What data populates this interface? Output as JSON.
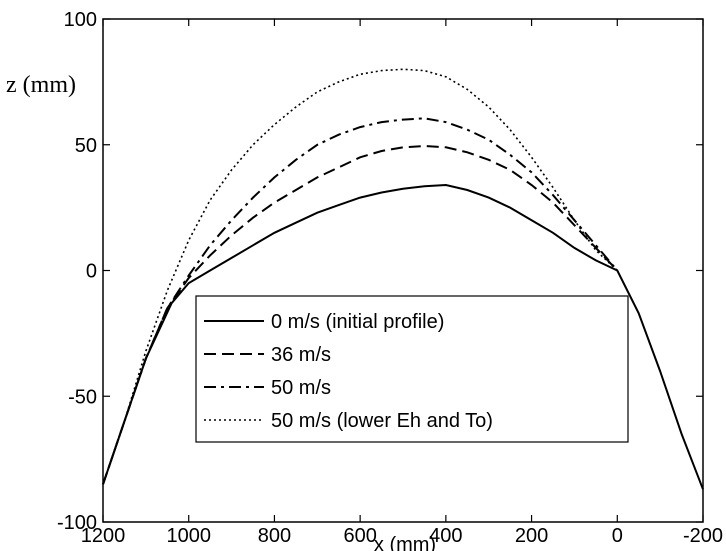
{
  "chart_data": {
    "type": "line",
    "xlabel": "x (mm)",
    "ylabel": "z (mm)",
    "xlim": [
      1200,
      -200
    ],
    "ylim": [
      -100,
      100
    ],
    "x_ticks": [
      1200,
      1000,
      800,
      600,
      400,
      200,
      0,
      -200
    ],
    "y_ticks": [
      100,
      50,
      0,
      -50,
      -100
    ],
    "x_tick_labels": [
      "1200",
      "1000",
      "800",
      "600",
      "400",
      "200",
      "0",
      "-200"
    ],
    "y_tick_labels": [
      "100",
      "50",
      "0",
      "-50",
      "-100"
    ],
    "grid": false,
    "legend_position": "lower-center",
    "series": [
      {
        "name": "0  m/s (initial profile)",
        "style": "solid",
        "x": [
          1200,
          1150,
          1100,
          1040,
          1000,
          950,
          900,
          850,
          800,
          750,
          700,
          650,
          600,
          550,
          500,
          450,
          400,
          350,
          300,
          250,
          200,
          150,
          100,
          50,
          0,
          -50,
          -100,
          -150,
          -200
        ],
        "y": [
          -85,
          -60,
          -35,
          -13,
          -5,
          0,
          5,
          10,
          15,
          19,
          23,
          26,
          29,
          31,
          32.5,
          33.5,
          34,
          32,
          29,
          25,
          20,
          15,
          9,
          4,
          0,
          -17,
          -40,
          -65,
          -87
        ]
      },
      {
        "name": "36 m/s",
        "style": "dashed",
        "x": [
          1200,
          1150,
          1100,
          1050,
          1000,
          950,
          900,
          850,
          800,
          750,
          700,
          650,
          600,
          550,
          500,
          450,
          400,
          350,
          300,
          250,
          200,
          150,
          100,
          50,
          0
        ],
        "y": [
          -85,
          -60,
          -35,
          -15,
          -3,
          6,
          14,
          21,
          27,
          32,
          37,
          41,
          45,
          47.5,
          49,
          49.5,
          49,
          47,
          44,
          40,
          34,
          27,
          18,
          9,
          0
        ]
      },
      {
        "name": "50 m/s",
        "style": "dash-dot",
        "x": [
          1200,
          1150,
          1100,
          1050,
          1000,
          950,
          900,
          850,
          800,
          750,
          700,
          650,
          600,
          550,
          500,
          450,
          400,
          350,
          300,
          250,
          200,
          150,
          100,
          50,
          0
        ],
        "y": [
          -85,
          -60,
          -35,
          -15,
          -2,
          10,
          20,
          29,
          37,
          44,
          50,
          54,
          57,
          59,
          60,
          60.5,
          59,
          56,
          52,
          46,
          39,
          30,
          20,
          10,
          0
        ]
      },
      {
        "name": "50 m/s (lower Eh and To)",
        "style": "dotted",
        "x": [
          1200,
          1150,
          1100,
          1050,
          1000,
          950,
          900,
          850,
          800,
          750,
          700,
          650,
          600,
          550,
          500,
          450,
          400,
          350,
          300,
          250,
          200,
          150,
          100,
          50,
          0
        ],
        "y": [
          -85,
          -60,
          -32,
          -8,
          12,
          28,
          40,
          50,
          58,
          65,
          71,
          75,
          78,
          79.5,
          80,
          79.5,
          77,
          72,
          65,
          56,
          45,
          33,
          20,
          8,
          0
        ]
      }
    ]
  }
}
